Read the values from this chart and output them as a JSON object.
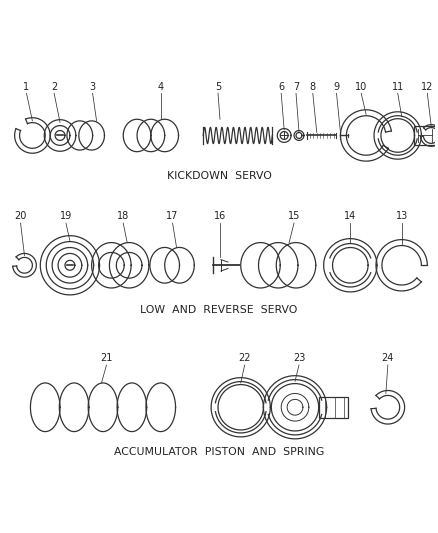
{
  "background_color": "#ffffff",
  "line_color": "#333333",
  "text_color": "#222222",
  "section1_label": "KICKDOWN  SERVO",
  "section2_label": "LOW  AND  REVERSE  SERVO",
  "section3_label": "ACCUMULATOR  PISTON  AND  SPRING",
  "figsize": [
    4.38,
    5.33
  ],
  "dpi": 100
}
